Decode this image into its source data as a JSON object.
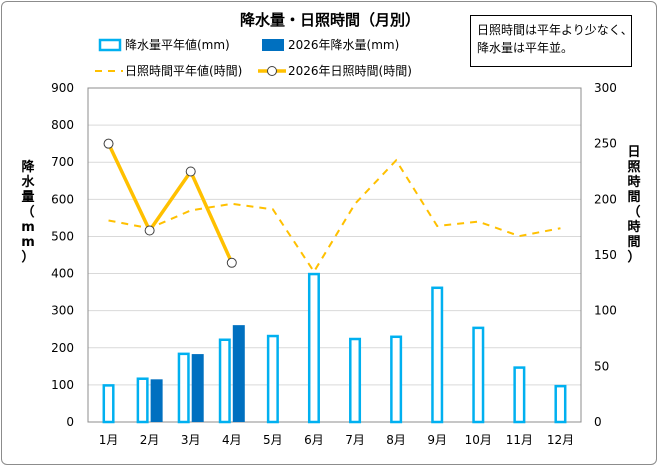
{
  "chart_data": {
    "type": "bar",
    "title": "降水量・日照時間（月別）",
    "note_lines": [
      "日照時間は平年より少なく、",
      "降水量は平年並。"
    ],
    "categories": [
      "1月",
      "2月",
      "3月",
      "4月",
      "5月",
      "6月",
      "7月",
      "8月",
      "9月",
      "10月",
      "11月",
      "12月"
    ],
    "y_left": {
      "label": "降水量（mm）",
      "range": [
        0,
        900
      ],
      "ticks": [
        "0",
        "100",
        "200",
        "300",
        "400",
        "500",
        "600",
        "700",
        "800",
        "900"
      ]
    },
    "y_right": {
      "label": "日照時間（時間）",
      "range": [
        0,
        300
      ],
      "ticks": [
        "0",
        "50",
        "100",
        "150",
        "200",
        "250",
        "300"
      ]
    },
    "series": [
      {
        "name": "降水量平年値(mm)",
        "kind": "bar-outline",
        "axis": "left",
        "color": "#00b0f0",
        "values": [
          102,
          120,
          187,
          225,
          235,
          402,
          227,
          233,
          365,
          257,
          150,
          100
        ]
      },
      {
        "name": "2026年降水量(mm)",
        "kind": "bar-filled",
        "axis": "left",
        "color": "#0070c0",
        "values": [
          null,
          115,
          183,
          261,
          null,
          null,
          null,
          null,
          null,
          null,
          null,
          null
        ]
      },
      {
        "name": "日照時間平年値(時間)",
        "kind": "line-dashed",
        "axis": "right",
        "color": "#ffc000",
        "values": [
          181,
          174,
          190,
          196,
          191,
          135,
          196,
          235,
          176,
          180,
          167,
          174
        ]
      },
      {
        "name": "2026年日照時間(時間)",
        "kind": "line-markers",
        "axis": "right",
        "color": "#ffc000",
        "values": [
          250,
          172,
          225,
          143,
          null,
          null,
          null,
          null,
          null,
          null,
          null,
          null
        ]
      }
    ],
    "grid": {
      "horizontal": true,
      "vertical": false
    },
    "legend_position": "top"
  }
}
